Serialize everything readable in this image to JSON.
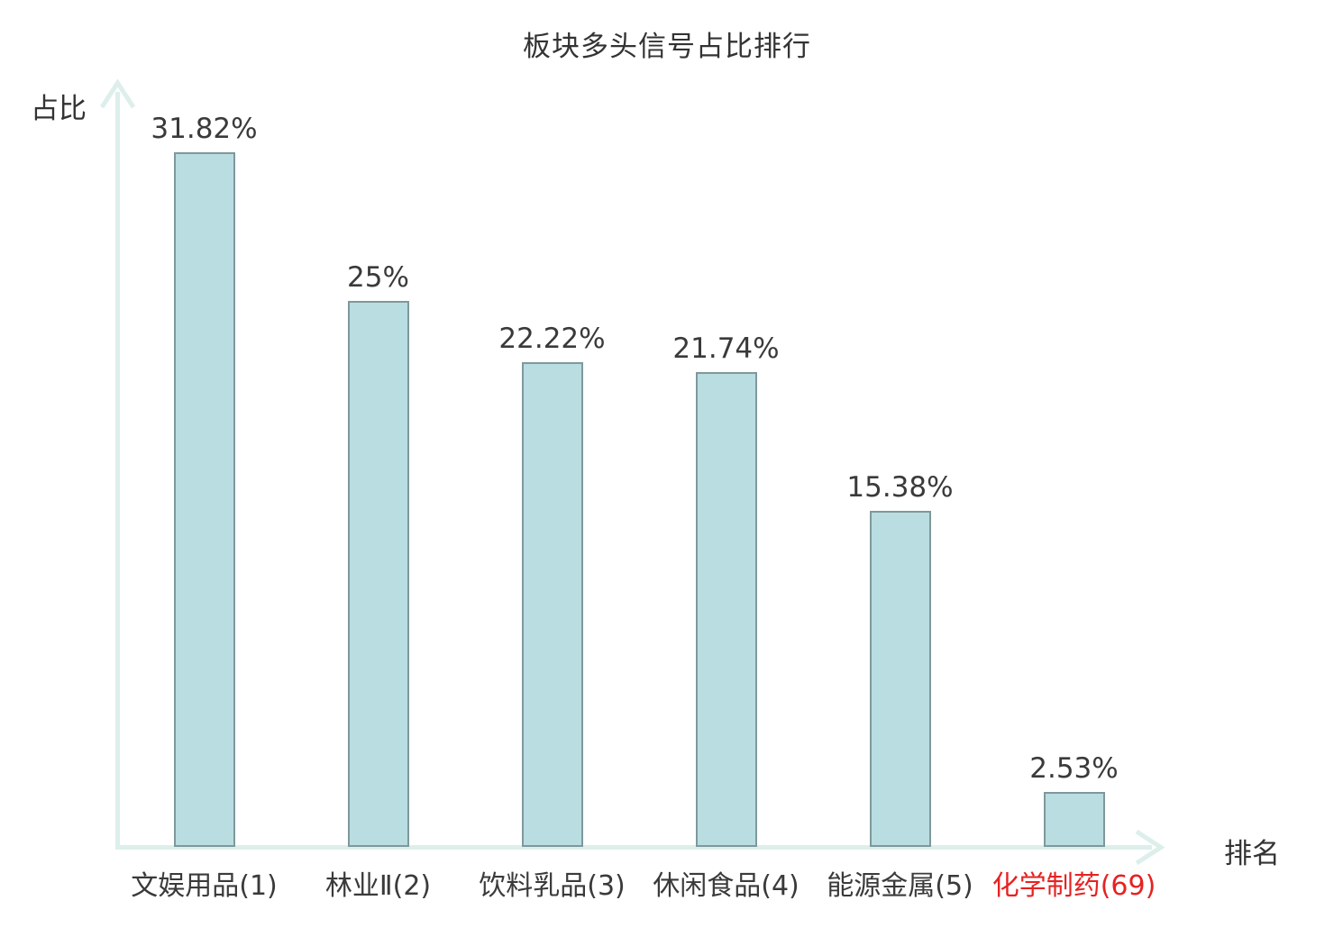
{
  "title": "板块多头信号占比排行",
  "chart_data": {
    "type": "bar",
    "title": "板块多头信号占比排行",
    "xlabel": "排名",
    "ylabel": "占比",
    "categories": [
      "文娱用品(1)",
      "林业Ⅱ(2)",
      "饮料乳品(3)",
      "休闲食品(4)",
      "能源金属(5)",
      "化学制药(69)"
    ],
    "ranks": [
      1,
      2,
      3,
      4,
      5,
      69
    ],
    "values": [
      31.82,
      25,
      22.22,
      21.74,
      15.38,
      2.53
    ],
    "value_labels": [
      "31.82%",
      "25%",
      "22.22%",
      "21.74%",
      "15.38%",
      "2.53%"
    ],
    "highlight_index": 5,
    "highlight_color": "#e62222",
    "text_color": "#3a3a3a",
    "bar_fill": "#b9dde1",
    "bar_border": "#7f989b",
    "axis_color": "#ddefeb",
    "ylim": [
      0,
      33
    ],
    "grid": false,
    "legend": "none"
  }
}
